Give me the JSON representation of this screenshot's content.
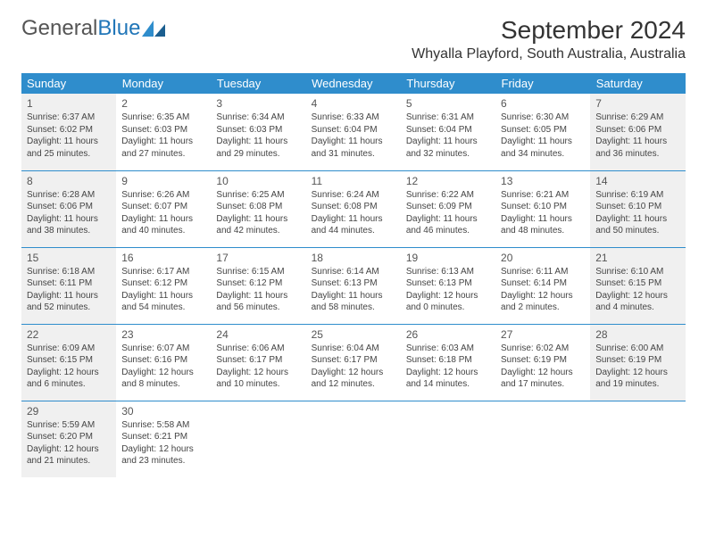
{
  "logo": {
    "part1": "General",
    "part2": "Blue"
  },
  "title": "September 2024",
  "location": "Whyalla Playford, South Australia, Australia",
  "colors": {
    "header_bg": "#2f8dcc",
    "header_text": "#ffffff",
    "shade_bg": "#f0f0f0",
    "border": "#2f8dcc",
    "logo_blue": "#2176b8",
    "text": "#444444"
  },
  "weekdays": [
    "Sunday",
    "Monday",
    "Tuesday",
    "Wednesday",
    "Thursday",
    "Friday",
    "Saturday"
  ],
  "weeks": [
    [
      {
        "day": "1",
        "sunrise": "Sunrise: 6:37 AM",
        "sunset": "Sunset: 6:02 PM",
        "dl1": "Daylight: 11 hours",
        "dl2": "and 25 minutes.",
        "shade": true
      },
      {
        "day": "2",
        "sunrise": "Sunrise: 6:35 AM",
        "sunset": "Sunset: 6:03 PM",
        "dl1": "Daylight: 11 hours",
        "dl2": "and 27 minutes.",
        "shade": false
      },
      {
        "day": "3",
        "sunrise": "Sunrise: 6:34 AM",
        "sunset": "Sunset: 6:03 PM",
        "dl1": "Daylight: 11 hours",
        "dl2": "and 29 minutes.",
        "shade": false
      },
      {
        "day": "4",
        "sunrise": "Sunrise: 6:33 AM",
        "sunset": "Sunset: 6:04 PM",
        "dl1": "Daylight: 11 hours",
        "dl2": "and 31 minutes.",
        "shade": false
      },
      {
        "day": "5",
        "sunrise": "Sunrise: 6:31 AM",
        "sunset": "Sunset: 6:04 PM",
        "dl1": "Daylight: 11 hours",
        "dl2": "and 32 minutes.",
        "shade": false
      },
      {
        "day": "6",
        "sunrise": "Sunrise: 6:30 AM",
        "sunset": "Sunset: 6:05 PM",
        "dl1": "Daylight: 11 hours",
        "dl2": "and 34 minutes.",
        "shade": false
      },
      {
        "day": "7",
        "sunrise": "Sunrise: 6:29 AM",
        "sunset": "Sunset: 6:06 PM",
        "dl1": "Daylight: 11 hours",
        "dl2": "and 36 minutes.",
        "shade": true
      }
    ],
    [
      {
        "day": "8",
        "sunrise": "Sunrise: 6:28 AM",
        "sunset": "Sunset: 6:06 PM",
        "dl1": "Daylight: 11 hours",
        "dl2": "and 38 minutes.",
        "shade": true
      },
      {
        "day": "9",
        "sunrise": "Sunrise: 6:26 AM",
        "sunset": "Sunset: 6:07 PM",
        "dl1": "Daylight: 11 hours",
        "dl2": "and 40 minutes.",
        "shade": false
      },
      {
        "day": "10",
        "sunrise": "Sunrise: 6:25 AM",
        "sunset": "Sunset: 6:08 PM",
        "dl1": "Daylight: 11 hours",
        "dl2": "and 42 minutes.",
        "shade": false
      },
      {
        "day": "11",
        "sunrise": "Sunrise: 6:24 AM",
        "sunset": "Sunset: 6:08 PM",
        "dl1": "Daylight: 11 hours",
        "dl2": "and 44 minutes.",
        "shade": false
      },
      {
        "day": "12",
        "sunrise": "Sunrise: 6:22 AM",
        "sunset": "Sunset: 6:09 PM",
        "dl1": "Daylight: 11 hours",
        "dl2": "and 46 minutes.",
        "shade": false
      },
      {
        "day": "13",
        "sunrise": "Sunrise: 6:21 AM",
        "sunset": "Sunset: 6:10 PM",
        "dl1": "Daylight: 11 hours",
        "dl2": "and 48 minutes.",
        "shade": false
      },
      {
        "day": "14",
        "sunrise": "Sunrise: 6:19 AM",
        "sunset": "Sunset: 6:10 PM",
        "dl1": "Daylight: 11 hours",
        "dl2": "and 50 minutes.",
        "shade": true
      }
    ],
    [
      {
        "day": "15",
        "sunrise": "Sunrise: 6:18 AM",
        "sunset": "Sunset: 6:11 PM",
        "dl1": "Daylight: 11 hours",
        "dl2": "and 52 minutes.",
        "shade": true
      },
      {
        "day": "16",
        "sunrise": "Sunrise: 6:17 AM",
        "sunset": "Sunset: 6:12 PM",
        "dl1": "Daylight: 11 hours",
        "dl2": "and 54 minutes.",
        "shade": false
      },
      {
        "day": "17",
        "sunrise": "Sunrise: 6:15 AM",
        "sunset": "Sunset: 6:12 PM",
        "dl1": "Daylight: 11 hours",
        "dl2": "and 56 minutes.",
        "shade": false
      },
      {
        "day": "18",
        "sunrise": "Sunrise: 6:14 AM",
        "sunset": "Sunset: 6:13 PM",
        "dl1": "Daylight: 11 hours",
        "dl2": "and 58 minutes.",
        "shade": false
      },
      {
        "day": "19",
        "sunrise": "Sunrise: 6:13 AM",
        "sunset": "Sunset: 6:13 PM",
        "dl1": "Daylight: 12 hours",
        "dl2": "and 0 minutes.",
        "shade": false
      },
      {
        "day": "20",
        "sunrise": "Sunrise: 6:11 AM",
        "sunset": "Sunset: 6:14 PM",
        "dl1": "Daylight: 12 hours",
        "dl2": "and 2 minutes.",
        "shade": false
      },
      {
        "day": "21",
        "sunrise": "Sunrise: 6:10 AM",
        "sunset": "Sunset: 6:15 PM",
        "dl1": "Daylight: 12 hours",
        "dl2": "and 4 minutes.",
        "shade": true
      }
    ],
    [
      {
        "day": "22",
        "sunrise": "Sunrise: 6:09 AM",
        "sunset": "Sunset: 6:15 PM",
        "dl1": "Daylight: 12 hours",
        "dl2": "and 6 minutes.",
        "shade": true
      },
      {
        "day": "23",
        "sunrise": "Sunrise: 6:07 AM",
        "sunset": "Sunset: 6:16 PM",
        "dl1": "Daylight: 12 hours",
        "dl2": "and 8 minutes.",
        "shade": false
      },
      {
        "day": "24",
        "sunrise": "Sunrise: 6:06 AM",
        "sunset": "Sunset: 6:17 PM",
        "dl1": "Daylight: 12 hours",
        "dl2": "and 10 minutes.",
        "shade": false
      },
      {
        "day": "25",
        "sunrise": "Sunrise: 6:04 AM",
        "sunset": "Sunset: 6:17 PM",
        "dl1": "Daylight: 12 hours",
        "dl2": "and 12 minutes.",
        "shade": false
      },
      {
        "day": "26",
        "sunrise": "Sunrise: 6:03 AM",
        "sunset": "Sunset: 6:18 PM",
        "dl1": "Daylight: 12 hours",
        "dl2": "and 14 minutes.",
        "shade": false
      },
      {
        "day": "27",
        "sunrise": "Sunrise: 6:02 AM",
        "sunset": "Sunset: 6:19 PM",
        "dl1": "Daylight: 12 hours",
        "dl2": "and 17 minutes.",
        "shade": false
      },
      {
        "day": "28",
        "sunrise": "Sunrise: 6:00 AM",
        "sunset": "Sunset: 6:19 PM",
        "dl1": "Daylight: 12 hours",
        "dl2": "and 19 minutes.",
        "shade": true
      }
    ],
    [
      {
        "day": "29",
        "sunrise": "Sunrise: 5:59 AM",
        "sunset": "Sunset: 6:20 PM",
        "dl1": "Daylight: 12 hours",
        "dl2": "and 21 minutes.",
        "shade": true
      },
      {
        "day": "30",
        "sunrise": "Sunrise: 5:58 AM",
        "sunset": "Sunset: 6:21 PM",
        "dl1": "Daylight: 12 hours",
        "dl2": "and 23 minutes.",
        "shade": false
      },
      null,
      null,
      null,
      null,
      null
    ]
  ]
}
